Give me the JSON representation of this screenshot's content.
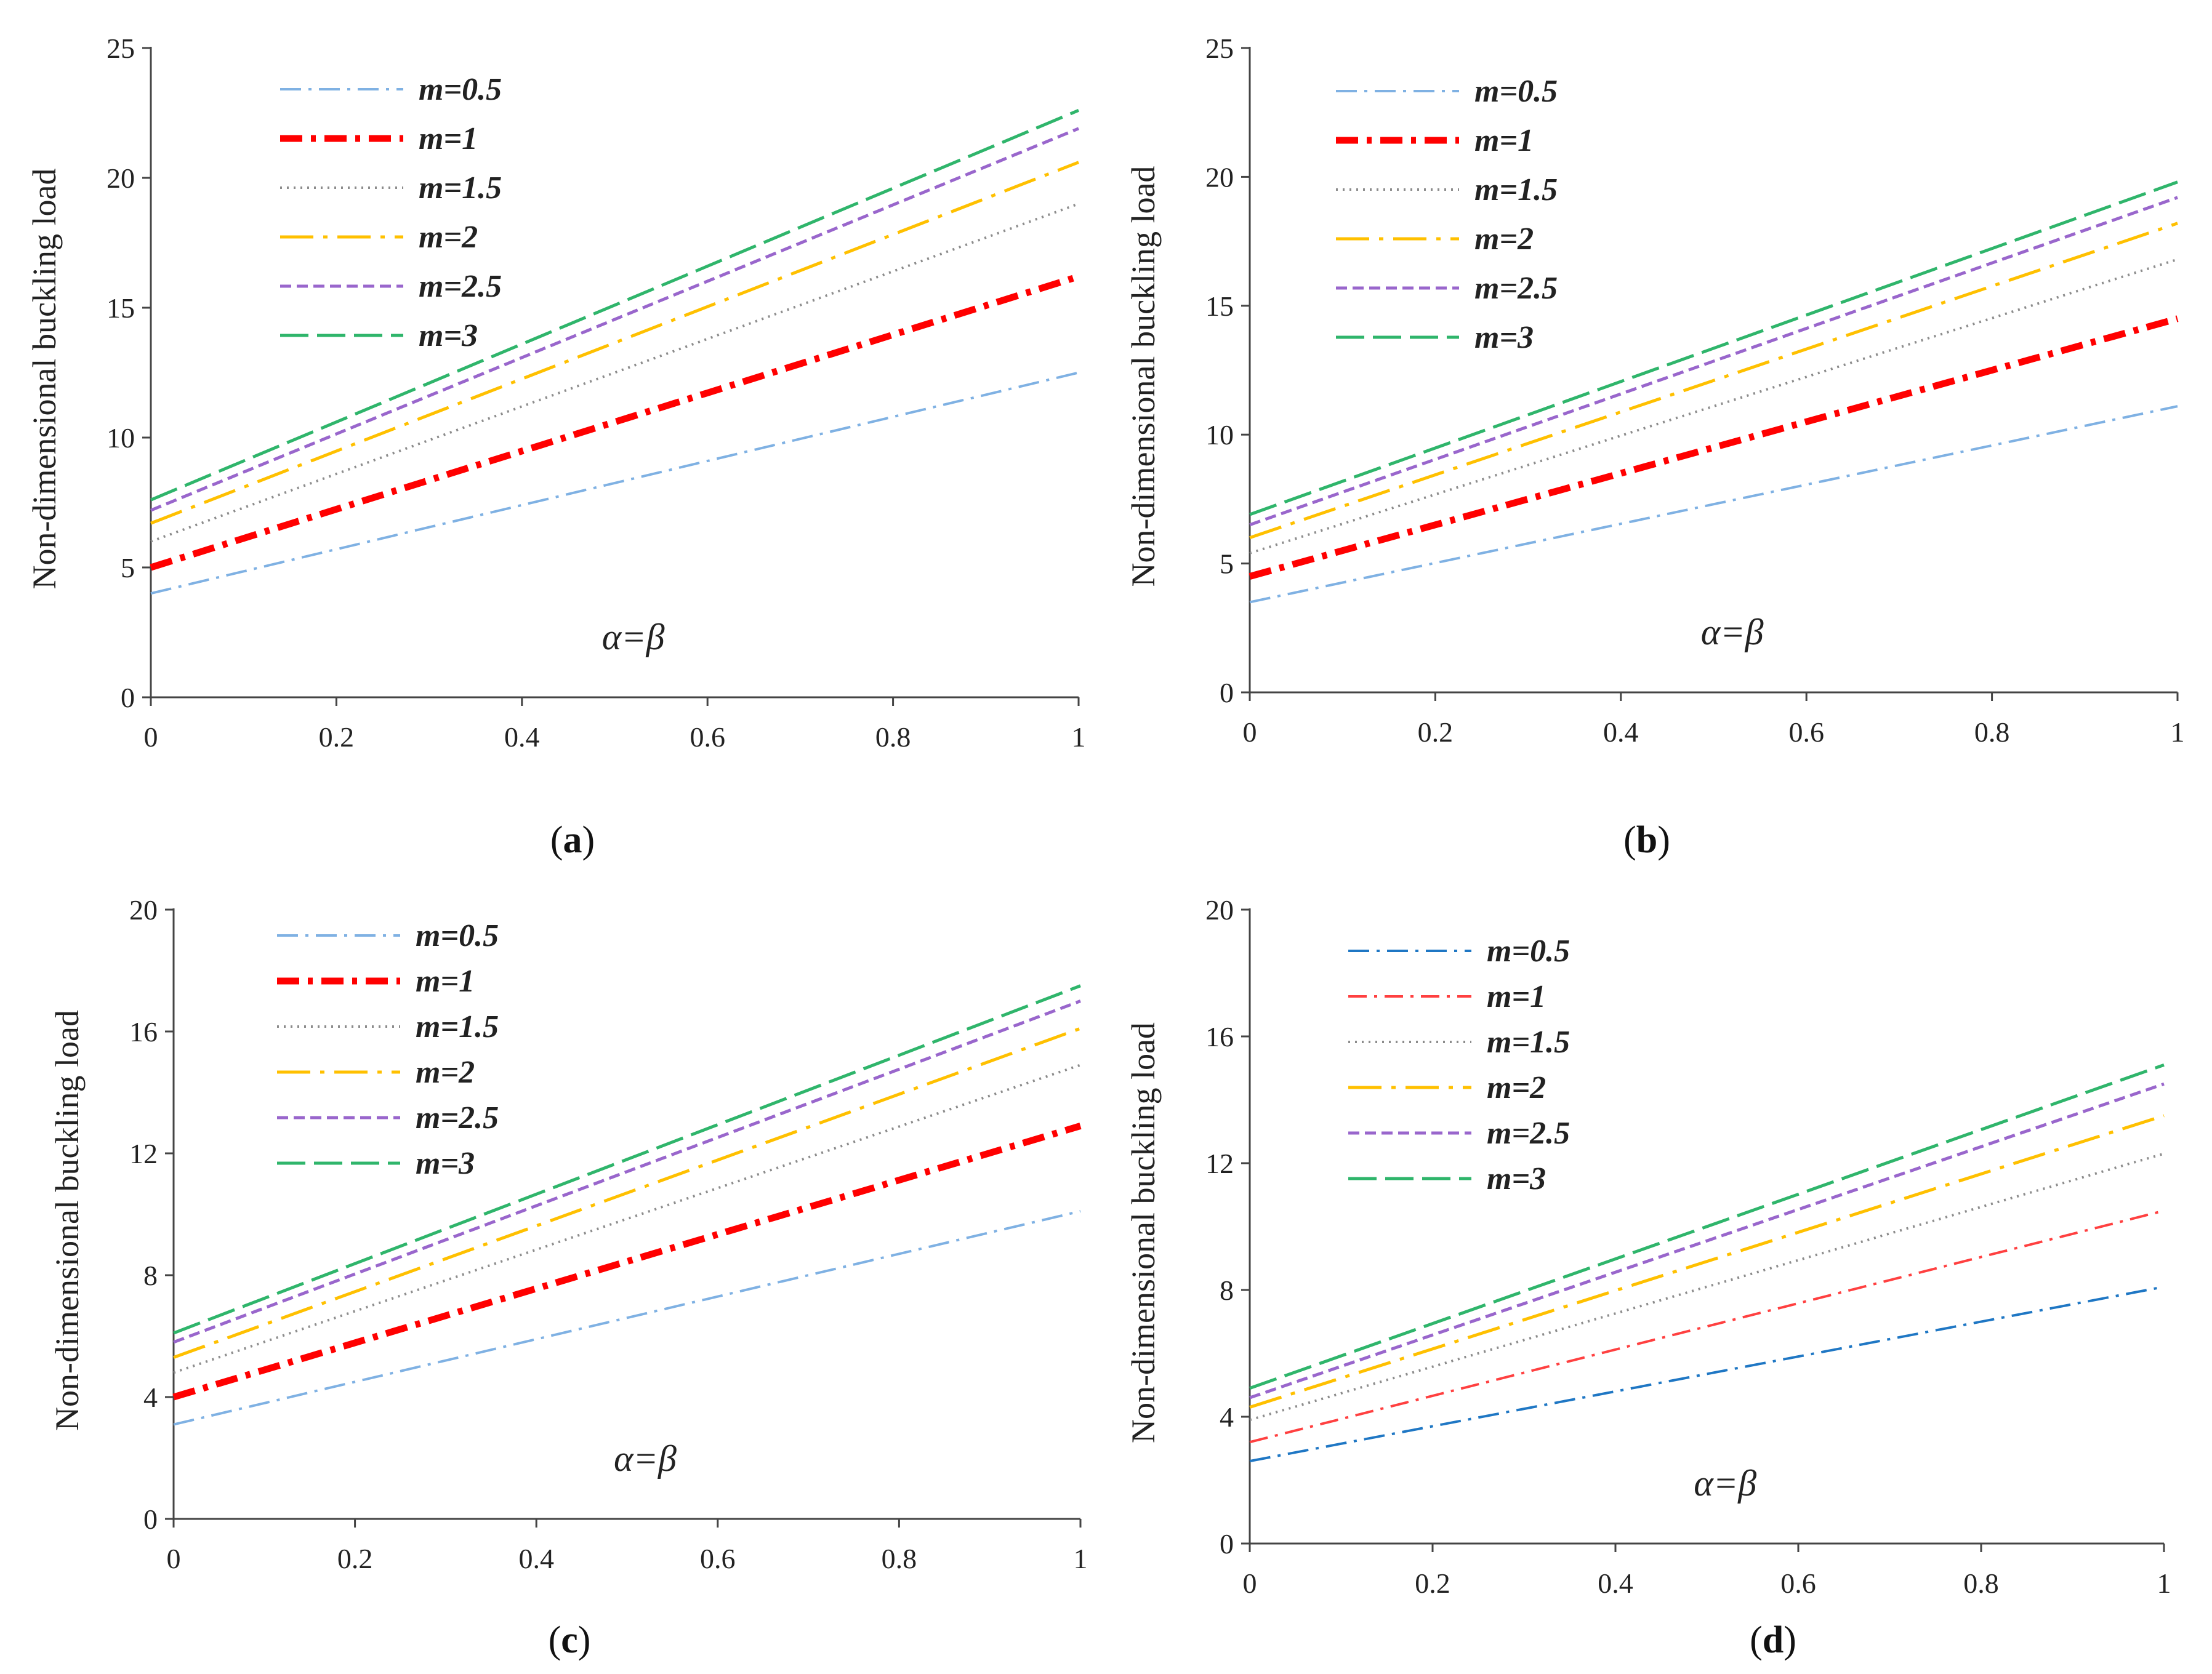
{
  "figure": {
    "panels": [
      {
        "caption_open": "(",
        "caption_letter": "a",
        "caption_close": ")"
      },
      {
        "caption_open": "(",
        "caption_letter": "b",
        "caption_close": ")"
      },
      {
        "caption_open": "(",
        "caption_letter": "c",
        "caption_close": ")"
      },
      {
        "caption_open": "(",
        "caption_letter": "d",
        "caption_close": ")"
      }
    ]
  },
  "chart_data": [
    {
      "type": "line",
      "panel": "a",
      "ylabel": "Non-dimensional buckling load",
      "xlabel": "α=β",
      "xlim": [
        0,
        1
      ],
      "ylim": [
        0,
        25
      ],
      "xticks": [
        "0",
        "0.2",
        "0.4",
        "0.6",
        "0.8",
        "1"
      ],
      "yticks": [
        "0",
        "5",
        "10",
        "15",
        "20",
        "25"
      ],
      "x": [
        0,
        1
      ],
      "series": [
        {
          "name": "m=0.5",
          "values": [
            4.0,
            12.5
          ],
          "color": "#7fb1e3",
          "style": "dash-dot-thin"
        },
        {
          "name": "m=1",
          "values": [
            5.0,
            16.2
          ],
          "color": "#ff0000",
          "style": "dash-dot-thick"
        },
        {
          "name": "m=1.5",
          "values": [
            6.0,
            19.0
          ],
          "color": "#8c8c8c",
          "style": "dotted"
        },
        {
          "name": "m=2",
          "values": [
            6.7,
            20.6
          ],
          "color": "#ffc000",
          "style": "long-dash-dot"
        },
        {
          "name": "m=2.5",
          "values": [
            7.2,
            21.9
          ],
          "color": "#9966cc",
          "style": "short-dash"
        },
        {
          "name": "m=3",
          "values": [
            7.6,
            22.6
          ],
          "color": "#2fb56b",
          "style": "long-dash"
        }
      ]
    },
    {
      "type": "line",
      "panel": "b",
      "ylabel": "Non-dimensional buckling load",
      "xlabel": "α=β",
      "xlim": [
        0,
        1
      ],
      "ylim": [
        0,
        25
      ],
      "xticks": [
        "0",
        "0.2",
        "0.4",
        "0.6",
        "0.8",
        "1"
      ],
      "yticks": [
        "0",
        "5",
        "10",
        "15",
        "20",
        "25"
      ],
      "x": [
        0,
        1
      ],
      "series": [
        {
          "name": "m=0.5",
          "values": [
            3.5,
            11.1
          ],
          "color": "#7fb1e3",
          "style": "dash-dot-thin"
        },
        {
          "name": "m=1",
          "values": [
            4.5,
            14.5
          ],
          "color": "#ff0000",
          "style": "dash-dot-thick"
        },
        {
          "name": "m=1.5",
          "values": [
            5.4,
            16.8
          ],
          "color": "#8c8c8c",
          "style": "dotted"
        },
        {
          "name": "m=2",
          "values": [
            6.0,
            18.2
          ],
          "color": "#ffc000",
          "style": "long-dash-dot"
        },
        {
          "name": "m=2.5",
          "values": [
            6.5,
            19.2
          ],
          "color": "#9966cc",
          "style": "short-dash"
        },
        {
          "name": "m=3",
          "values": [
            6.9,
            19.8
          ],
          "color": "#2fb56b",
          "style": "long-dash"
        }
      ]
    },
    {
      "type": "line",
      "panel": "c",
      "ylabel": "Non-dimensional buckling load",
      "xlabel": "α=β",
      "xlim": [
        0,
        1
      ],
      "ylim": [
        0,
        20
      ],
      "xticks": [
        "0",
        "0.2",
        "0.4",
        "0.6",
        "0.8",
        "1"
      ],
      "yticks": [
        "0",
        "4",
        "8",
        "12",
        "16",
        "20"
      ],
      "x": [
        0,
        1
      ],
      "series": [
        {
          "name": "m=0.5",
          "values": [
            3.1,
            10.1
          ],
          "color": "#7fb1e3",
          "style": "dash-dot-thin"
        },
        {
          "name": "m=1",
          "values": [
            4.0,
            12.9
          ],
          "color": "#ff0000",
          "style": "dash-dot-thick"
        },
        {
          "name": "m=1.5",
          "values": [
            4.8,
            14.9
          ],
          "color": "#8c8c8c",
          "style": "dotted"
        },
        {
          "name": "m=2",
          "values": [
            5.3,
            16.1
          ],
          "color": "#ffc000",
          "style": "long-dash-dot"
        },
        {
          "name": "m=2.5",
          "values": [
            5.8,
            17.0
          ],
          "color": "#9966cc",
          "style": "short-dash"
        },
        {
          "name": "m=3",
          "values": [
            6.1,
            17.5
          ],
          "color": "#2fb56b",
          "style": "long-dash"
        }
      ]
    },
    {
      "type": "line",
      "panel": "d",
      "ylabel": "Non-dimensional buckling load",
      "xlabel": "α=β",
      "xlim": [
        0,
        1
      ],
      "ylim": [
        0,
        20
      ],
      "xticks": [
        "0",
        "0.2",
        "0.4",
        "0.6",
        "0.8",
        "1"
      ],
      "yticks": [
        "0",
        "4",
        "8",
        "12",
        "16",
        "20"
      ],
      "x": [
        0,
        1
      ],
      "series": [
        {
          "name": "m=0.5",
          "values": [
            2.6,
            8.1
          ],
          "color": "#1f77c4",
          "style": "dash-dot-thin"
        },
        {
          "name": "m=1",
          "values": [
            3.2,
            10.5
          ],
          "color": "#ff4040",
          "style": "dash-dot-red-thin"
        },
        {
          "name": "m=1.5",
          "values": [
            3.9,
            12.3
          ],
          "color": "#8c8c8c",
          "style": "dotted"
        },
        {
          "name": "m=2",
          "values": [
            4.3,
            13.5
          ],
          "color": "#ffc000",
          "style": "long-dash-dot"
        },
        {
          "name": "m=2.5",
          "values": [
            4.6,
            14.5
          ],
          "color": "#9966cc",
          "style": "short-dash"
        },
        {
          "name": "m=3",
          "values": [
            4.9,
            15.1
          ],
          "color": "#2fb56b",
          "style": "long-dash"
        }
      ]
    }
  ]
}
